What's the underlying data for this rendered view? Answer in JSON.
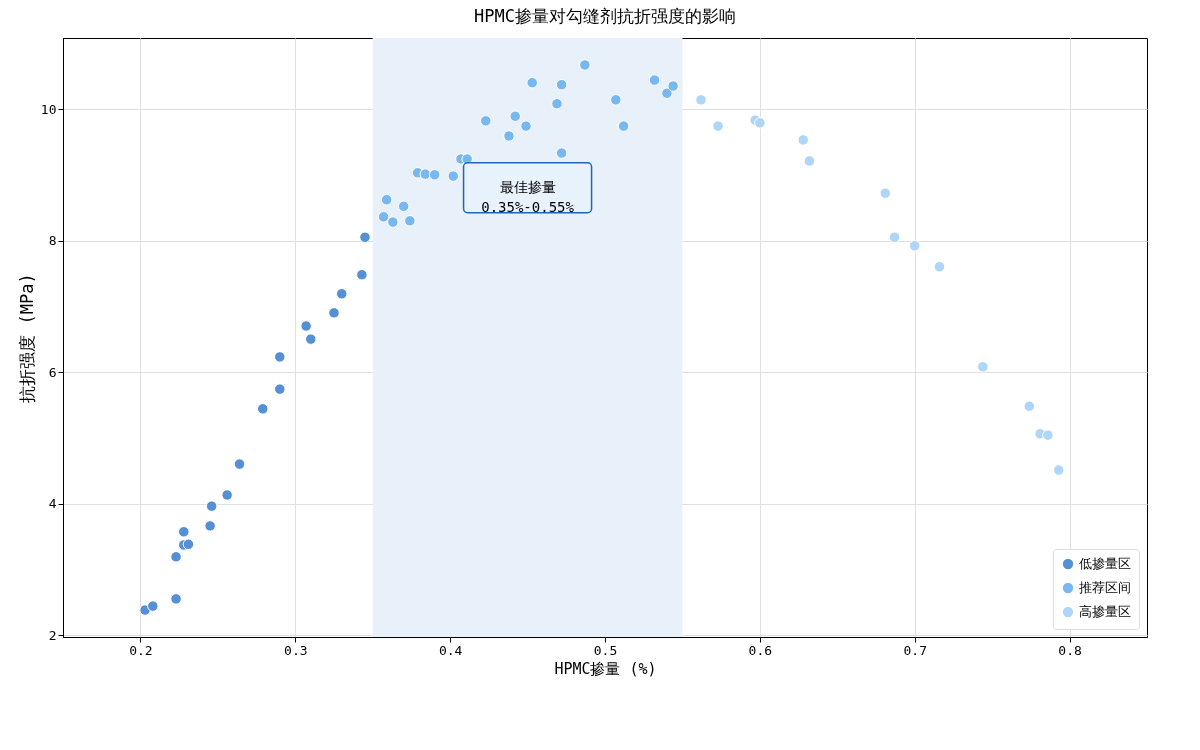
{
  "chart_data": {
    "type": "scatter",
    "title": "HPMC掺量对勾缝剂抗折强度的影响",
    "xlabel": "HPMC掺量 (%)",
    "ylabel": "抗折强度 (MPa)",
    "xlim": [
      0.15,
      0.85
    ],
    "xticks": [
      {
        "value": 0.2,
        "label": "0.2"
      },
      {
        "value": 0.3,
        "label": "0.3"
      },
      {
        "value": 0.4,
        "label": "0.4"
      },
      {
        "value": 0.5,
        "label": "0.5"
      },
      {
        "value": 0.6,
        "label": "0.6"
      },
      {
        "value": 0.7,
        "label": "0.7"
      },
      {
        "value": 0.8,
        "label": "0.8"
      }
    ],
    "ylim": [
      1.97,
      11.08
    ],
    "yticks": [
      2,
      4,
      6,
      8,
      10
    ],
    "grid": true,
    "legend": "bottom right",
    "marker": "circle",
    "bands": [
      {
        "axis": "x",
        "from": 0.35,
        "to": 0.55,
        "label": "最佳掺量\n0.35%-0.55%",
        "color": "#e8f0fa"
      }
    ],
    "series": [
      {
        "name": "低掺量区",
        "color": "#5590d4",
        "x": [
          0.203,
          0.208,
          0.223,
          0.223,
          0.228,
          0.228,
          0.231,
          0.245,
          0.246,
          0.256,
          0.264,
          0.279,
          0.29,
          0.29,
          0.307,
          0.31,
          0.325,
          0.33,
          0.343,
          0.345
        ],
        "values": [
          2.38,
          2.44,
          2.55,
          3.19,
          3.37,
          3.57,
          3.38,
          3.66,
          3.96,
          4.13,
          4.6,
          5.44,
          6.23,
          5.74,
          6.7,
          6.5,
          6.9,
          7.19,
          7.48,
          8.05
        ]
      },
      {
        "name": "推荐区间",
        "color": "#78b8f0",
        "x": [
          0.357,
          0.359,
          0.363,
          0.37,
          0.374,
          0.379,
          0.384,
          0.39,
          0.402,
          0.407,
          0.411,
          0.423,
          0.438,
          0.442,
          0.449,
          0.453,
          0.469,
          0.472,
          0.472,
          0.487,
          0.507,
          0.512,
          0.532,
          0.54,
          0.544
        ],
        "values": [
          8.36,
          8.62,
          8.28,
          8.52,
          8.3,
          9.03,
          9.01,
          9.0,
          8.98,
          9.24,
          9.24,
          9.82,
          9.59,
          9.89,
          9.74,
          10.4,
          10.08,
          10.37,
          9.33,
          10.67,
          10.14,
          9.74,
          10.44,
          10.24,
          10.35
        ]
      },
      {
        "name": "高掺量区",
        "color": "#afd6f8",
        "x": [
          0.562,
          0.573,
          0.597,
          0.6,
          0.628,
          0.632,
          0.681,
          0.687,
          0.7,
          0.716,
          0.744,
          0.774,
          0.781,
          0.786,
          0.793
        ],
        "values": [
          10.14,
          9.74,
          9.83,
          9.79,
          9.53,
          9.21,
          8.72,
          8.05,
          7.92,
          7.6,
          6.08,
          5.48,
          5.06,
          5.04,
          4.51
        ]
      }
    ]
  }
}
